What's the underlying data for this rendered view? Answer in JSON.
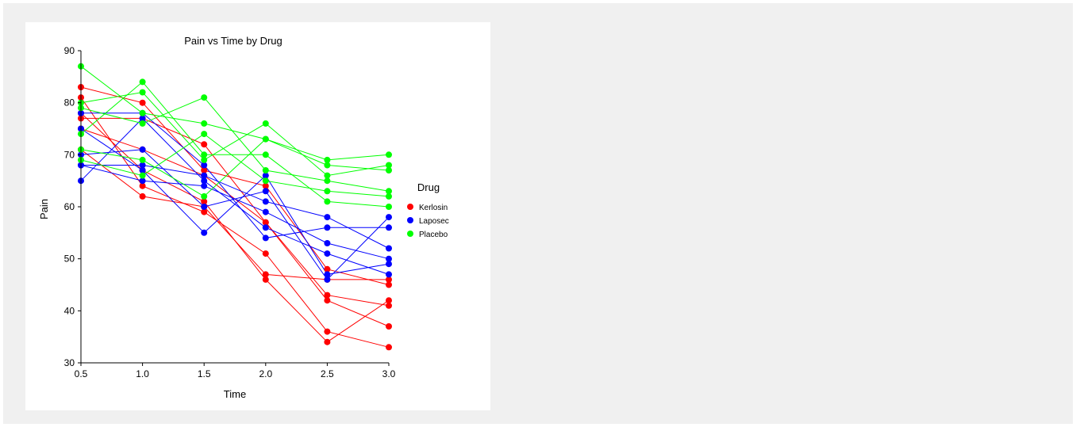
{
  "chart_data": {
    "type": "line",
    "title": "Pain vs Time by Drug",
    "xlabel": "Time",
    "ylabel": "Pain",
    "xlim": [
      0.5,
      3.0
    ],
    "ylim": [
      30,
      90
    ],
    "x_ticks": [
      "0.5",
      "1.0",
      "1.5",
      "2.0",
      "2.5",
      "3.0"
    ],
    "y_ticks": [
      "30",
      "40",
      "50",
      "60",
      "70",
      "80",
      "90"
    ],
    "x": [
      0.5,
      1.0,
      1.5,
      2.0,
      2.5,
      3.0
    ],
    "grid": false,
    "legend": {
      "title": "Drug",
      "position": "right"
    },
    "groups": [
      {
        "name": "Kerlosin",
        "color": "#ff0000",
        "subjects": [
          [
            83,
            80,
            67,
            64,
            48,
            45
          ],
          [
            81,
            64,
            59,
            51,
            36,
            33
          ],
          [
            77,
            77,
            72,
            57,
            42,
            37
          ],
          [
            71,
            62,
            60,
            47,
            46,
            46
          ],
          [
            78,
            67,
            61,
            46,
            34,
            42
          ],
          [
            75,
            71,
            66,
            57,
            43,
            41
          ]
        ]
      },
      {
        "name": "Laposec",
        "color": "#0000ff",
        "subjects": [
          [
            78,
            78,
            68,
            54,
            56,
            56
          ],
          [
            75,
            67,
            55,
            66,
            47,
            49
          ],
          [
            70,
            71,
            60,
            63,
            46,
            58
          ],
          [
            68,
            65,
            64,
            59,
            53,
            50
          ],
          [
            65,
            77,
            65,
            56,
            51,
            47
          ],
          [
            68,
            68,
            66,
            61,
            58,
            52
          ]
        ]
      },
      {
        "name": "Placebo",
        "color": "#00ff00",
        "subjects": [
          [
            87,
            78,
            76,
            73,
            69,
            70
          ],
          [
            80,
            82,
            69,
            76,
            66,
            68
          ],
          [
            74,
            84,
            70,
            70,
            61,
            60
          ],
          [
            79,
            76,
            81,
            67,
            65,
            63
          ],
          [
            71,
            69,
            62,
            73,
            68,
            67
          ],
          [
            69,
            66,
            74,
            65,
            63,
            62
          ]
        ]
      }
    ]
  }
}
